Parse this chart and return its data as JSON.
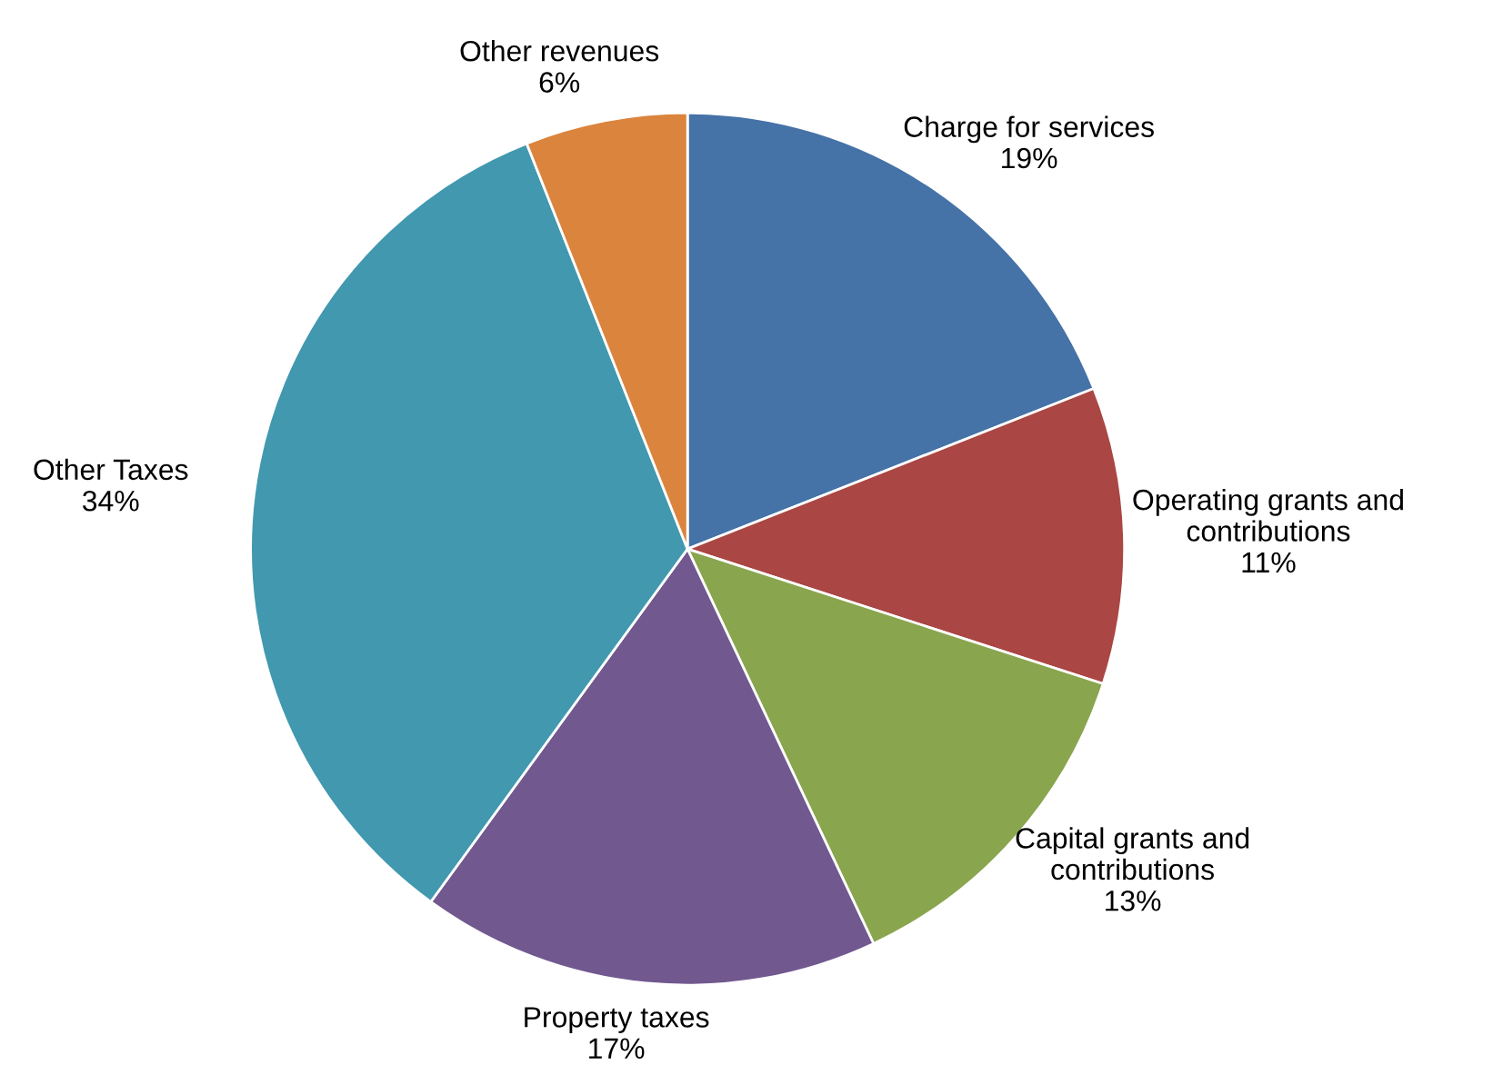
{
  "chart_data": {
    "type": "pie",
    "categories": [
      "Charge for services",
      "Operating grants and\ncontributions",
      "Capital grants and\ncontributions",
      "Property taxes",
      "Other Taxes",
      "Other revenues"
    ],
    "values": [
      19,
      11,
      13,
      17,
      34,
      6
    ],
    "value_labels": [
      "19%",
      "11%",
      "13%",
      "17%",
      "34%",
      "6%"
    ],
    "colors": [
      "#4572a7",
      "#aa4643",
      "#89a54e",
      "#71588f",
      "#4198af",
      "#db843d"
    ],
    "legend": false
  }
}
